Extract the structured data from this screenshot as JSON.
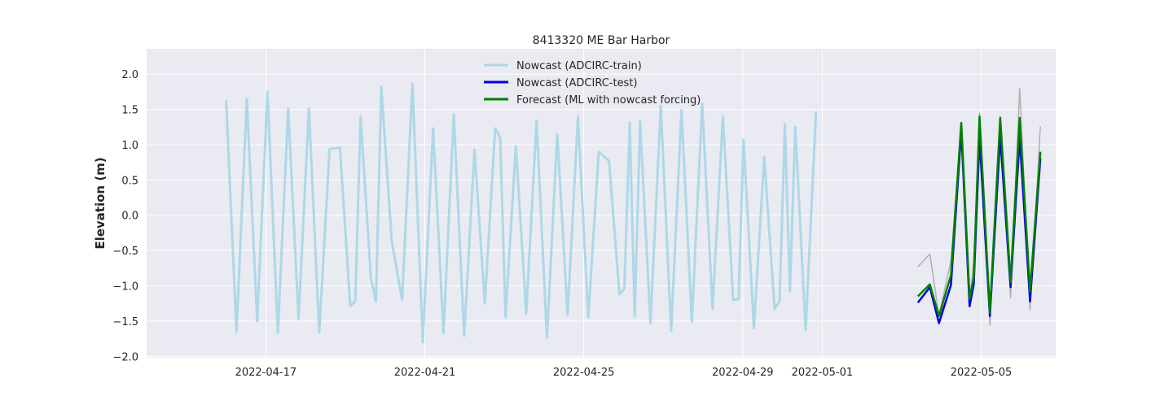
{
  "chart_data": {
    "type": "line",
    "title": "8413320 ME Bar Harbor",
    "xlabel": "",
    "ylabel": "Elevation (m)",
    "xlim": [
      "2022-04-14T00:00",
      "2022-05-06T21:00"
    ],
    "ylim": [
      -2.02,
      2.36
    ],
    "grid": true,
    "legend_position": "top-center",
    "x_ticks": [
      "2022-04-17",
      "2022-04-21",
      "2022-04-25",
      "2022-04-29",
      "2022-05-01",
      "2022-05-05"
    ],
    "y_ticks": [
      2.0,
      1.5,
      1.0,
      0.5,
      0.0,
      -0.5,
      -1.0,
      -1.5,
      -2.0
    ],
    "y_tick_labels": [
      "2.0",
      "1.5",
      "1.0",
      "0.5",
      "0.0",
      "−0.5",
      "−1.0",
      "−1.5",
      "−2.0"
    ],
    "series": [
      {
        "name": "Nowcast (ADCIRC-train)",
        "color": "#add8e6",
        "x": [
          "2022-04-16T00:00",
          "2022-04-16T06:15",
          "2022-04-16T12:30",
          "2022-04-16T18:45",
          "2022-04-17T01:00",
          "2022-04-17T07:15",
          "2022-04-17T13:30",
          "2022-04-17T19:45",
          "2022-04-18T02:00",
          "2022-04-18T08:15",
          "2022-04-18T14:30",
          "2022-04-18T20:45",
          "2022-04-19T03:00",
          "2022-04-19T06:00",
          "2022-04-19T09:15",
          "2022-04-19T15:30",
          "2022-04-19T18:30",
          "2022-04-19T21:45",
          "2022-04-20T04:00",
          "2022-04-20T10:15",
          "2022-04-20T16:30",
          "2022-04-20T22:45",
          "2022-04-21T05:00",
          "2022-04-21T11:15",
          "2022-04-21T17:30",
          "2022-04-21T23:45",
          "2022-04-22T06:00",
          "2022-04-22T12:15",
          "2022-04-22T18:30",
          "2022-04-22T21:30",
          "2022-04-23T00:45",
          "2022-04-23T07:00",
          "2022-04-23T13:15",
          "2022-04-23T19:30",
          "2022-04-24T01:45",
          "2022-04-24T08:00",
          "2022-04-24T14:15",
          "2022-04-24T20:30",
          "2022-04-25T02:45",
          "2022-04-25T09:00",
          "2022-04-25T15:15",
          "2022-04-25T21:30",
          "2022-04-26T00:30",
          "2022-04-26T03:45",
          "2022-04-26T06:45",
          "2022-04-26T10:00",
          "2022-04-26T16:15",
          "2022-04-26T22:30",
          "2022-04-27T04:45",
          "2022-04-27T11:00",
          "2022-04-27T17:15",
          "2022-04-27T23:30",
          "2022-04-28T05:45",
          "2022-04-28T12:00",
          "2022-04-28T18:15",
          "2022-04-28T21:30",
          "2022-04-29T00:30",
          "2022-04-29T06:45",
          "2022-04-29T13:00",
          "2022-04-29T19:15",
          "2022-04-29T22:15",
          "2022-04-30T01:30",
          "2022-04-30T04:30",
          "2022-04-30T07:45",
          "2022-04-30T14:00",
          "2022-04-30T20:15"
        ],
        "y": [
          1.63,
          -1.65,
          1.65,
          -1.5,
          1.75,
          -1.67,
          1.51,
          -1.47,
          1.51,
          -1.66,
          0.94,
          0.96,
          -1.29,
          -1.22,
          1.4,
          -0.9,
          -1.22,
          1.82,
          -0.37,
          -1.2,
          1.86,
          -1.8,
          1.23,
          -1.67,
          1.43,
          -1.71,
          0.93,
          -1.25,
          1.23,
          1.1,
          -1.44,
          0.98,
          -1.4,
          1.34,
          -1.74,
          1.15,
          -1.41,
          1.4,
          -1.45,
          0.9,
          0.77,
          -1.12,
          -1.04,
          1.31,
          -1.43,
          1.33,
          -1.53,
          1.55,
          -1.64,
          1.49,
          -1.51,
          1.58,
          -1.33,
          1.4,
          -1.2,
          -1.19,
          1.07,
          -1.6,
          0.83,
          -1.33,
          -1.22,
          1.29,
          -1.08,
          1.25,
          -1.63,
          1.47
        ]
      },
      {
        "name": "",
        "color": "#b0b0b0",
        "x": [
          "2022-05-03T09:45",
          "2022-05-03T17:00",
          "2022-05-03T22:30",
          "2022-05-04T05:45",
          "2022-05-04T12:00",
          "2022-05-04T17:00",
          "2022-05-04T19:30",
          "2022-05-04T23:00",
          "2022-05-05T05:15",
          "2022-05-05T11:30",
          "2022-05-05T17:45",
          "2022-05-05T23:15",
          "2022-05-06T05:30",
          "2022-05-06T11:45"
        ],
        "y": [
          -0.73,
          -0.55,
          -1.42,
          -0.65,
          1.26,
          -1.23,
          -0.64,
          1.45,
          -1.56,
          1.4,
          -1.17,
          1.8,
          -1.34,
          1.26
        ]
      },
      {
        "name": "Nowcast (ADCIRC-test)",
        "color": "#0000dd",
        "x": [
          "2022-05-03T09:45",
          "2022-05-03T17:00",
          "2022-05-03T22:30",
          "2022-05-04T05:45",
          "2022-05-04T12:00",
          "2022-05-04T17:00",
          "2022-05-04T19:30",
          "2022-05-04T23:00",
          "2022-05-05T05:15",
          "2022-05-05T11:30",
          "2022-05-05T17:45",
          "2022-05-05T23:15",
          "2022-05-06T05:30",
          "2022-05-06T11:45"
        ],
        "y": [
          -1.24,
          -1.02,
          -1.53,
          -0.99,
          1.2,
          -1.29,
          -0.98,
          1.1,
          -1.43,
          1.12,
          -1.02,
          1.1,
          -1.22,
          0.81
        ]
      },
      {
        "name": "Forecast (ML with nowcast forcing)",
        "color": "#008000",
        "x": [
          "2022-05-03T09:45",
          "2022-05-03T17:00",
          "2022-05-03T22:30",
          "2022-05-04T05:45",
          "2022-05-04T12:00",
          "2022-05-04T17:00",
          "2022-05-04T19:30",
          "2022-05-04T23:00",
          "2022-05-05T05:15",
          "2022-05-05T11:30",
          "2022-05-05T17:45",
          "2022-05-05T23:15",
          "2022-05-06T05:30",
          "2022-05-06T11:45"
        ],
        "y": [
          -1.15,
          -0.98,
          -1.43,
          -0.85,
          1.31,
          -1.18,
          -0.88,
          1.4,
          -1.38,
          1.38,
          -0.95,
          1.38,
          -1.08,
          0.9
        ]
      }
    ]
  }
}
